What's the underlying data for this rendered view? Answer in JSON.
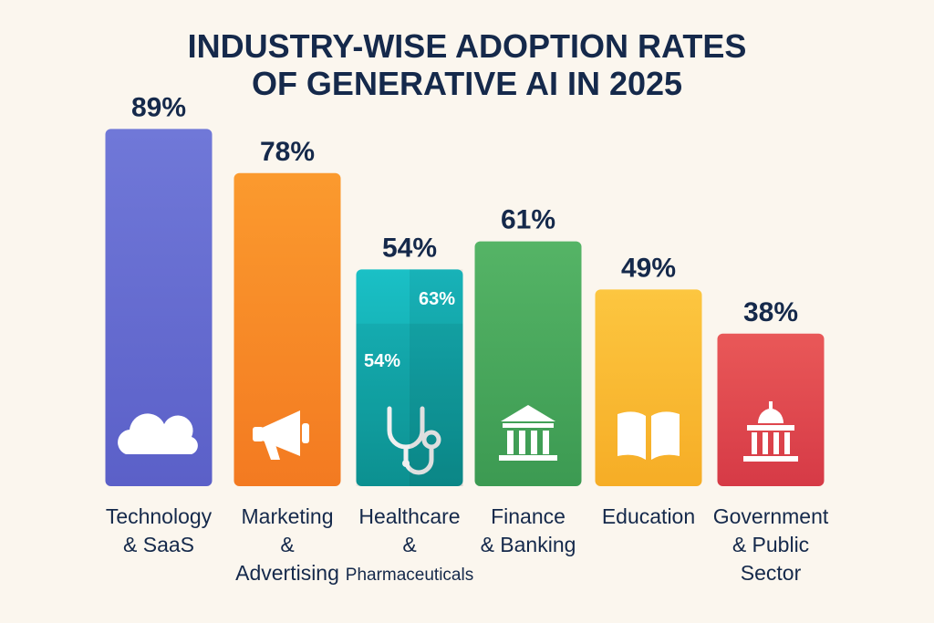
{
  "title_lines": [
    "INDUSTRY-WISE ADOPTION RATES",
    "OF GENERATIVE AI IN 2025"
  ],
  "chart_data": {
    "type": "bar",
    "title": "INDUSTRY-WISE ADOPTION RATES OF GENERATIVE AI IN 2025",
    "xlabel": "",
    "ylabel": "",
    "ylim": [
      0,
      100
    ],
    "grid": false,
    "categories": [
      "Technology & SaaS",
      "Marketing & Advertising",
      "Healthcare & Pharmaceuticals",
      "Finance & Banking",
      "Education",
      "Government & Public Sector"
    ],
    "values": [
      89,
      78,
      54,
      61,
      49,
      38
    ],
    "value_labels": [
      "89%",
      "78%",
      "54%",
      "61%",
      "49%",
      "38%"
    ],
    "category_label_lines": [
      [
        "Technology",
        "& SaaS"
      ],
      [
        "Marketing",
        "&",
        "Advertising"
      ],
      [
        "Healthcare",
        "&",
        "Pharmaceuticals"
      ],
      [
        "Finance",
        "& Banking"
      ],
      [
        "Education"
      ],
      [
        "Government",
        "& Public",
        "Sector"
      ]
    ],
    "icons": [
      "cloud-icon",
      "megaphone-icon",
      "stethoscope-icon",
      "bank-icon",
      "book-icon",
      "capitol-icon"
    ],
    "colors": [
      [
        "#7078d8",
        "#5b60c8"
      ],
      [
        "#fb9a2e",
        "#f37a21"
      ],
      [
        "#1ac0c6",
        "#0d9a9a"
      ],
      [
        "#55b466",
        "#3c9a52"
      ],
      [
        "#fcc640",
        "#f6ad26"
      ],
      [
        "#e95858",
        "#d63a46"
      ]
    ],
    "annotations": [
      {
        "category": "Healthcare & Pharmaceuticals",
        "label": "63%",
        "value": 63
      },
      {
        "category": "Healthcare & Pharmaceuticals",
        "label": "54%",
        "value": 54
      }
    ]
  }
}
